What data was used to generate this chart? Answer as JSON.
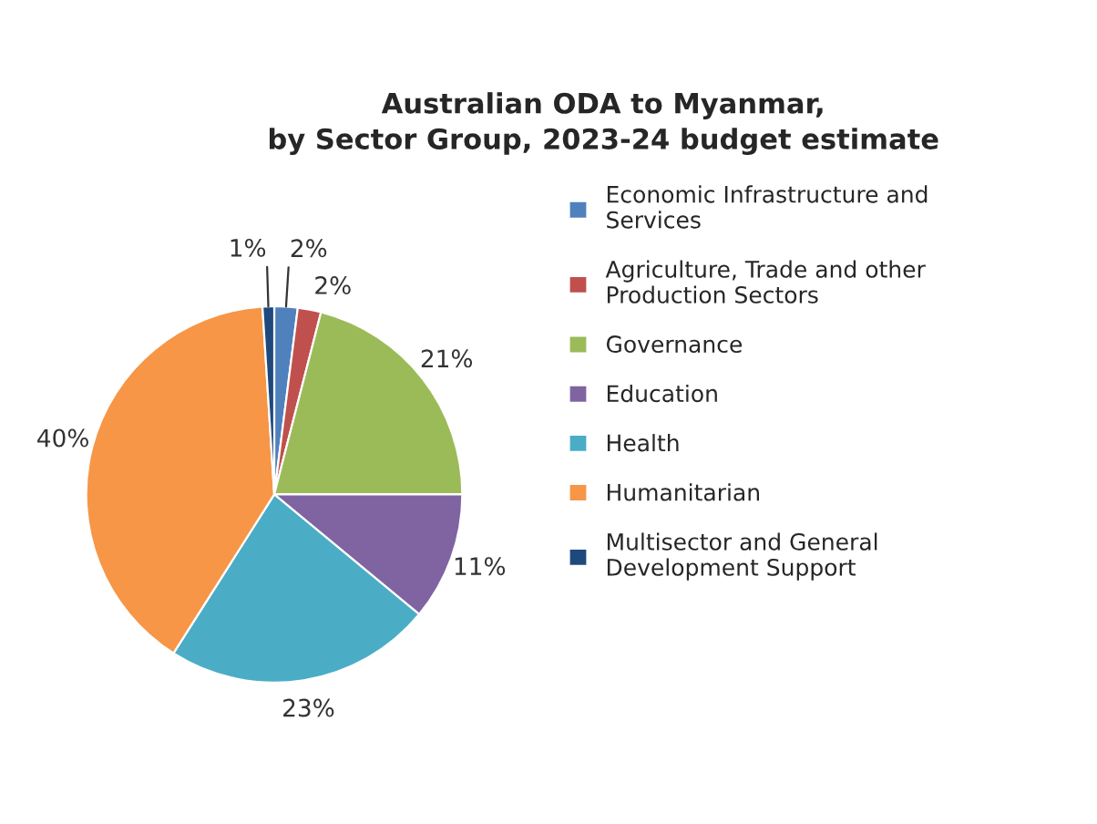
{
  "chart_data": {
    "type": "pie",
    "title": "Australian ODA to Myanmar,\nby Sector Group, 2023-24 budget estimate",
    "categories": [
      "Economic Infrastructure and\nServices",
      "Agriculture, Trade and other\nProduction Sectors",
      "Governance",
      "Education",
      "Health",
      "Humanitarian",
      "Multisector and General\nDevelopment Support"
    ],
    "values": [
      2,
      2,
      21,
      11,
      23,
      40,
      1
    ],
    "value_labels": [
      "2%",
      "2%",
      "21%",
      "11%",
      "23%",
      "40%",
      "1%"
    ],
    "colors": [
      "#4f81bd",
      "#c0504d",
      "#9bbb59",
      "#8064a2",
      "#4bacc6",
      "#f79646",
      "#1f497d"
    ],
    "legend": "right"
  }
}
